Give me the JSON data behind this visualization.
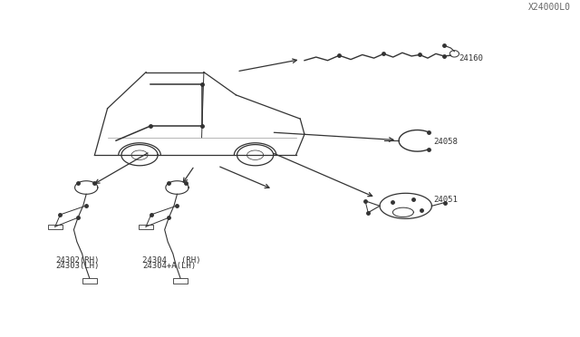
{
  "title": "",
  "background_color": "#ffffff",
  "figure_width": 6.4,
  "figure_height": 3.72,
  "dpi": 100,
  "label_24160": "24160",
  "label_24058": "24058",
  "label_24051": "24051",
  "label_24302": "24302(RH)",
  "label_24303": "24303(LH)",
  "label_24304": "24304   (RH)",
  "label_24304a": "24304+A(LH)",
  "label_watermark": "X24000L0",
  "font_size_labels": 6.5,
  "font_size_watermark": 7,
  "line_color": "#333333",
  "text_color": "#333333"
}
